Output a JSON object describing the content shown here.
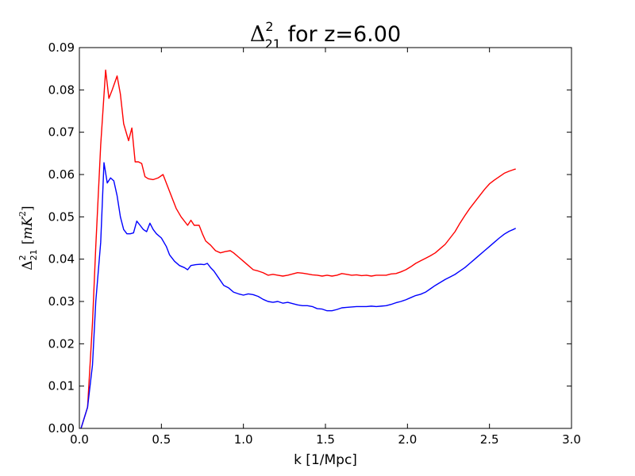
{
  "chart_data": {
    "type": "line",
    "title": {
      "math_symbol": "Δ",
      "math_superscript": "2",
      "math_subscript": "21",
      "suffix": " for z=6.00"
    },
    "xlabel": "k [1/Mpc]",
    "ylabel": {
      "math_symbol": "Δ",
      "math_superscript": "2",
      "math_subscript": "21",
      "units_open": "[",
      "units_base": "mK",
      "units_superscript": "2",
      "units_close": "]"
    },
    "xlim": [
      0.0,
      3.0
    ],
    "ylim": [
      0.0,
      0.09
    ],
    "x_ticks": [
      "0.0",
      "0.5",
      "1.0",
      "1.5",
      "2.0",
      "2.5",
      "3.0"
    ],
    "y_ticks": [
      "0.00",
      "0.01",
      "0.02",
      "0.03",
      "0.04",
      "0.05",
      "0.06",
      "0.07",
      "0.08",
      "0.09"
    ],
    "grid": false,
    "legend": "none",
    "series": [
      {
        "color": "#ff0000",
        "x": [
          0.01,
          0.05,
          0.08,
          0.1,
          0.13,
          0.16,
          0.18,
          0.2,
          0.23,
          0.25,
          0.27,
          0.3,
          0.32,
          0.34,
          0.36,
          0.38,
          0.4,
          0.42,
          0.45,
          0.48,
          0.51,
          0.55,
          0.59,
          0.62,
          0.66,
          0.68,
          0.7,
          0.73,
          0.75,
          0.77,
          0.8,
          0.83,
          0.86,
          0.89,
          0.92,
          0.94,
          0.97,
          1.0,
          1.03,
          1.06,
          1.09,
          1.12,
          1.15,
          1.18,
          1.21,
          1.24,
          1.27,
          1.3,
          1.33,
          1.36,
          1.39,
          1.42,
          1.45,
          1.48,
          1.51,
          1.54,
          1.57,
          1.6,
          1.63,
          1.66,
          1.69,
          1.72,
          1.75,
          1.78,
          1.81,
          1.84,
          1.87,
          1.9,
          1.93,
          1.96,
          1.99,
          2.02,
          2.05,
          2.08,
          2.11,
          2.14,
          2.17,
          2.2,
          2.23,
          2.26,
          2.29,
          2.32,
          2.35,
          2.38,
          2.41,
          2.44,
          2.47,
          2.5,
          2.53,
          2.56,
          2.59,
          2.62,
          2.65,
          2.66
        ],
        "y": [
          0.0,
          0.005,
          0.025,
          0.043,
          0.067,
          0.0847,
          0.078,
          0.08,
          0.0833,
          0.079,
          0.072,
          0.068,
          0.071,
          0.063,
          0.063,
          0.0626,
          0.0595,
          0.059,
          0.0588,
          0.0592,
          0.06,
          0.056,
          0.052,
          0.05,
          0.048,
          0.0492,
          0.048,
          0.048,
          0.046,
          0.0443,
          0.0433,
          0.042,
          0.0415,
          0.0418,
          0.042,
          0.0415,
          0.0405,
          0.0395,
          0.0385,
          0.0375,
          0.0372,
          0.0368,
          0.0362,
          0.0364,
          0.0362,
          0.036,
          0.0362,
          0.0365,
          0.0368,
          0.0367,
          0.0365,
          0.0363,
          0.0362,
          0.036,
          0.0362,
          0.036,
          0.0362,
          0.0366,
          0.0364,
          0.0362,
          0.0363,
          0.0361,
          0.0362,
          0.036,
          0.0362,
          0.0362,
          0.0362,
          0.0365,
          0.0366,
          0.037,
          0.0375,
          0.0382,
          0.039,
          0.0396,
          0.0402,
          0.0408,
          0.0415,
          0.0425,
          0.0435,
          0.045,
          0.0465,
          0.0485,
          0.0503,
          0.052,
          0.0535,
          0.055,
          0.0565,
          0.0578,
          0.0587,
          0.0595,
          0.0603,
          0.0608,
          0.0612,
          0.0613
        ]
      },
      {
        "color": "#0000ff",
        "x": [
          0.01,
          0.05,
          0.08,
          0.1,
          0.13,
          0.15,
          0.17,
          0.19,
          0.21,
          0.23,
          0.25,
          0.27,
          0.29,
          0.31,
          0.33,
          0.35,
          0.37,
          0.39,
          0.41,
          0.43,
          0.45,
          0.47,
          0.5,
          0.53,
          0.55,
          0.58,
          0.61,
          0.64,
          0.66,
          0.68,
          0.71,
          0.74,
          0.76,
          0.78,
          0.8,
          0.82,
          0.85,
          0.88,
          0.91,
          0.94,
          0.97,
          1.0,
          1.03,
          1.06,
          1.09,
          1.12,
          1.15,
          1.18,
          1.21,
          1.24,
          1.27,
          1.3,
          1.33,
          1.36,
          1.39,
          1.42,
          1.45,
          1.48,
          1.51,
          1.54,
          1.57,
          1.6,
          1.63,
          1.66,
          1.69,
          1.72,
          1.75,
          1.78,
          1.81,
          1.84,
          1.87,
          1.9,
          1.93,
          1.96,
          1.99,
          2.02,
          2.05,
          2.08,
          2.11,
          2.14,
          2.17,
          2.2,
          2.23,
          2.26,
          2.29,
          2.32,
          2.35,
          2.38,
          2.41,
          2.44,
          2.47,
          2.5,
          2.53,
          2.56,
          2.59,
          2.62,
          2.65,
          2.66
        ],
        "y": [
          0.0,
          0.005,
          0.015,
          0.03,
          0.044,
          0.0628,
          0.058,
          0.0592,
          0.0585,
          0.055,
          0.05,
          0.047,
          0.046,
          0.046,
          0.0462,
          0.049,
          0.048,
          0.047,
          0.0465,
          0.0485,
          0.047,
          0.046,
          0.045,
          0.043,
          0.041,
          0.0395,
          0.0385,
          0.038,
          0.0375,
          0.0385,
          0.0387,
          0.0388,
          0.0387,
          0.039,
          0.038,
          0.0372,
          0.0355,
          0.0338,
          0.0332,
          0.0322,
          0.0318,
          0.0315,
          0.0318,
          0.0316,
          0.0312,
          0.0305,
          0.03,
          0.0298,
          0.03,
          0.0296,
          0.0298,
          0.0295,
          0.0292,
          0.029,
          0.029,
          0.0288,
          0.0283,
          0.0282,
          0.0278,
          0.0278,
          0.0281,
          0.0285,
          0.0286,
          0.0287,
          0.0288,
          0.0288,
          0.0288,
          0.0289,
          0.0288,
          0.0289,
          0.029,
          0.0293,
          0.0297,
          0.03,
          0.0304,
          0.0309,
          0.0314,
          0.0317,
          0.0322,
          0.033,
          0.0338,
          0.0345,
          0.0352,
          0.0358,
          0.0364,
          0.0372,
          0.038,
          0.039,
          0.04,
          0.041,
          0.042,
          0.043,
          0.044,
          0.045,
          0.0459,
          0.0466,
          0.0471,
          0.0473
        ]
      }
    ]
  }
}
